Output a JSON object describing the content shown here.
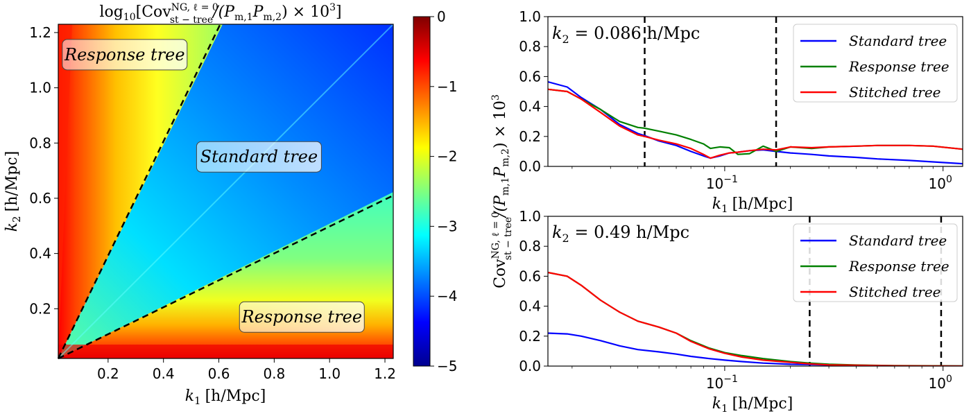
{
  "chart_data": [
    {
      "type": "heatmap",
      "title_main": "log",
      "title_sub": "10",
      "title_body": "[Cov",
      "title_sup": "NG, ℓ = 0",
      "title_subscript": "st − tree",
      "title_tail": "/(P",
      "title_tail_sub1": "m,1",
      "title_tail_mid": "P",
      "title_tail_sub2": "m,2",
      "title_tail_end": ") × 10",
      "title_tail_exp": "3",
      "title_close": "]",
      "xlabel_var": "k",
      "xlabel_sub": "1",
      "xlabel_unit": "[h/Mpc]",
      "ylabel_var": "k",
      "ylabel_sub": "2",
      "ylabel_unit": "[h/Mpc]",
      "xlim": [
        0.02,
        1.23
      ],
      "ylim": [
        0.02,
        1.23
      ],
      "xticks": [
        "0.2",
        "0.4",
        "0.6",
        "0.8",
        "1.0",
        "1.2"
      ],
      "yticks": [
        "0.2",
        "0.4",
        "0.6",
        "0.8",
        "1.0",
        "1.2"
      ],
      "xtick_values": [
        0.2,
        0.4,
        0.6,
        0.8,
        1.0,
        1.2
      ],
      "ytick_values": [
        0.2,
        0.4,
        0.6,
        0.8,
        1.0,
        1.2
      ],
      "colorbar": {
        "min": -5,
        "max": 0,
        "ticks": [
          "0",
          "−1",
          "−2",
          "−3",
          "−4",
          "−5"
        ],
        "tick_values": [
          0,
          -1,
          -2,
          -3,
          -4,
          -5
        ]
      },
      "dashed_lines": [
        {
          "from": [
            0.02,
            0.02
          ],
          "to": [
            0.605,
            1.23
          ]
        },
        {
          "from": [
            0.02,
            0.02
          ],
          "to": [
            1.23,
            0.61
          ]
        }
      ],
      "region_labels": [
        {
          "text": "Response tree",
          "at": [
            0.26,
            1.12
          ]
        },
        {
          "text": "Standard tree",
          "at": [
            0.745,
            0.75
          ]
        },
        {
          "text": "Response tree",
          "at": [
            0.9,
            0.17
          ]
        }
      ]
    },
    {
      "type": "line",
      "annotation": "k",
      "annotation_sub": "2",
      "annotation_value": " = 0.086 h/Mpc",
      "xscale": "log",
      "xlim": [
        0.0155,
        1.23
      ],
      "ylim": [
        0,
        1
      ],
      "yticks": [
        "0.0",
        "0.2",
        "0.4",
        "0.6",
        "0.8",
        "1.0"
      ],
      "ytick_values": [
        0,
        0.2,
        0.4,
        0.6,
        0.8,
        1.0
      ],
      "xticks_major": [
        {
          "value": 0.1,
          "base": "10",
          "exp": "−1"
        },
        {
          "value": 1,
          "base": "10",
          "exp": "0"
        }
      ],
      "vlines": [
        0.043,
        0.172
      ],
      "xlabel_var": "k",
      "xlabel_sub": "1",
      "xlabel_unit": "[h/Mpc]",
      "legend": [
        "Standard tree",
        "Response tree",
        "Stitched tree"
      ],
      "series": [
        {
          "name": "Standard tree",
          "color": "#0000ff",
          "x": [
            0.0155,
            0.019,
            0.022,
            0.027,
            0.033,
            0.04,
            0.043,
            0.05,
            0.06,
            0.07,
            0.08,
            0.086,
            0.095,
            0.105,
            0.115,
            0.13,
            0.15,
            0.172,
            0.2,
            0.25,
            0.3,
            0.4,
            0.5,
            0.7,
            0.9,
            1.23
          ],
          "y": [
            0.565,
            0.53,
            0.46,
            0.38,
            0.28,
            0.22,
            0.205,
            0.17,
            0.14,
            0.1,
            0.07,
            0.055,
            0.07,
            0.09,
            0.095,
            0.105,
            0.11,
            0.1,
            0.09,
            0.08,
            0.07,
            0.06,
            0.05,
            0.04,
            0.03,
            0.018
          ]
        },
        {
          "name": "Response tree",
          "color": "#008000",
          "x": [
            0.0155,
            0.019,
            0.022,
            0.027,
            0.033,
            0.04,
            0.043,
            0.05,
            0.06,
            0.07,
            0.08,
            0.086,
            0.095,
            0.105,
            0.115,
            0.13,
            0.15,
            0.16,
            0.172,
            0.2,
            0.25,
            0.3,
            0.4,
            0.5,
            0.7,
            0.9,
            1.23
          ],
          "y": [
            0.515,
            0.5,
            0.45,
            0.38,
            0.3,
            0.26,
            0.255,
            0.235,
            0.21,
            0.18,
            0.15,
            0.12,
            0.13,
            0.125,
            0.08,
            0.085,
            0.135,
            0.12,
            0.1,
            0.13,
            0.12,
            0.13,
            0.135,
            0.14,
            0.14,
            0.135,
            0.115
          ]
        },
        {
          "name": "Stitched tree",
          "color": "#ff0000",
          "x": [
            0.0155,
            0.019,
            0.022,
            0.027,
            0.033,
            0.04,
            0.043,
            0.05,
            0.06,
            0.07,
            0.08,
            0.086,
            0.095,
            0.105,
            0.115,
            0.13,
            0.15,
            0.172,
            0.2,
            0.25,
            0.3,
            0.4,
            0.5,
            0.7,
            0.9,
            1.23
          ],
          "y": [
            0.515,
            0.5,
            0.45,
            0.36,
            0.27,
            0.21,
            0.2,
            0.175,
            0.15,
            0.12,
            0.08,
            0.055,
            0.075,
            0.09,
            0.095,
            0.105,
            0.115,
            0.11,
            0.13,
            0.125,
            0.13,
            0.135,
            0.14,
            0.14,
            0.135,
            0.115
          ]
        }
      ]
    },
    {
      "type": "line",
      "annotation": "k",
      "annotation_sub": "2",
      "annotation_value": " = 0.49 h/Mpc",
      "xscale": "log",
      "xlim": [
        0.0155,
        1.23
      ],
      "ylim": [
        0,
        1
      ],
      "yticks": [
        "0.0",
        "0.2",
        "0.4",
        "0.6",
        "0.8",
        "1.0"
      ],
      "ytick_values": [
        0,
        0.2,
        0.4,
        0.6,
        0.8,
        1.0
      ],
      "xticks_major": [
        {
          "value": 0.1,
          "base": "10",
          "exp": "−1"
        },
        {
          "value": 1,
          "base": "10",
          "exp": "0"
        }
      ],
      "vlines": [
        0.245,
        0.98
      ],
      "xlabel_var": "k",
      "xlabel_sub": "1",
      "xlabel_unit": "[h/Mpc]",
      "legend": [
        "Standard tree",
        "Response tree",
        "Stitched tree"
      ],
      "series": [
        {
          "name": "Standard tree",
          "color": "#0000ff",
          "x": [
            0.0155,
            0.019,
            0.022,
            0.027,
            0.033,
            0.04,
            0.05,
            0.06,
            0.07,
            0.085,
            0.1,
            0.12,
            0.15,
            0.2,
            0.245,
            0.3,
            0.4,
            0.6,
            0.9,
            1.23
          ],
          "y": [
            0.22,
            0.215,
            0.2,
            0.17,
            0.135,
            0.11,
            0.095,
            0.08,
            0.065,
            0.05,
            0.04,
            0.03,
            0.02,
            0.012,
            0.01,
            0.007,
            0.004,
            0.002,
            0.001,
            0.0
          ]
        },
        {
          "name": "Response tree",
          "color": "#008000",
          "x": [
            0.0155,
            0.019,
            0.022,
            0.027,
            0.033,
            0.04,
            0.05,
            0.06,
            0.07,
            0.085,
            0.1,
            0.12,
            0.15,
            0.2,
            0.245,
            0.3,
            0.4,
            0.6,
            0.9,
            1.23
          ],
          "y": [
            0.625,
            0.6,
            0.54,
            0.44,
            0.36,
            0.3,
            0.26,
            0.22,
            0.17,
            0.12,
            0.09,
            0.07,
            0.05,
            0.03,
            0.02,
            0.012,
            0.007,
            0.003,
            0.002,
            0.001
          ]
        },
        {
          "name": "Stitched tree",
          "color": "#ff0000",
          "x": [
            0.0155,
            0.019,
            0.022,
            0.027,
            0.033,
            0.04,
            0.05,
            0.06,
            0.07,
            0.085,
            0.1,
            0.12,
            0.15,
            0.2,
            0.245,
            0.3,
            0.4,
            0.6,
            0.9,
            1.23
          ],
          "y": [
            0.625,
            0.6,
            0.54,
            0.44,
            0.36,
            0.3,
            0.26,
            0.22,
            0.165,
            0.115,
            0.085,
            0.06,
            0.04,
            0.025,
            0.015,
            0.008,
            0.005,
            0.002,
            0.001,
            0.0
          ]
        }
      ]
    }
  ],
  "shared_ylabel": {
    "main": "Cov",
    "sup": "NG, ℓ = 0",
    "sub": "st − tree",
    "tail": "/(P",
    "sub1": "m,1",
    "mid": "P",
    "sub2": "m,2",
    "end": ") × 10",
    "exp": "3"
  }
}
